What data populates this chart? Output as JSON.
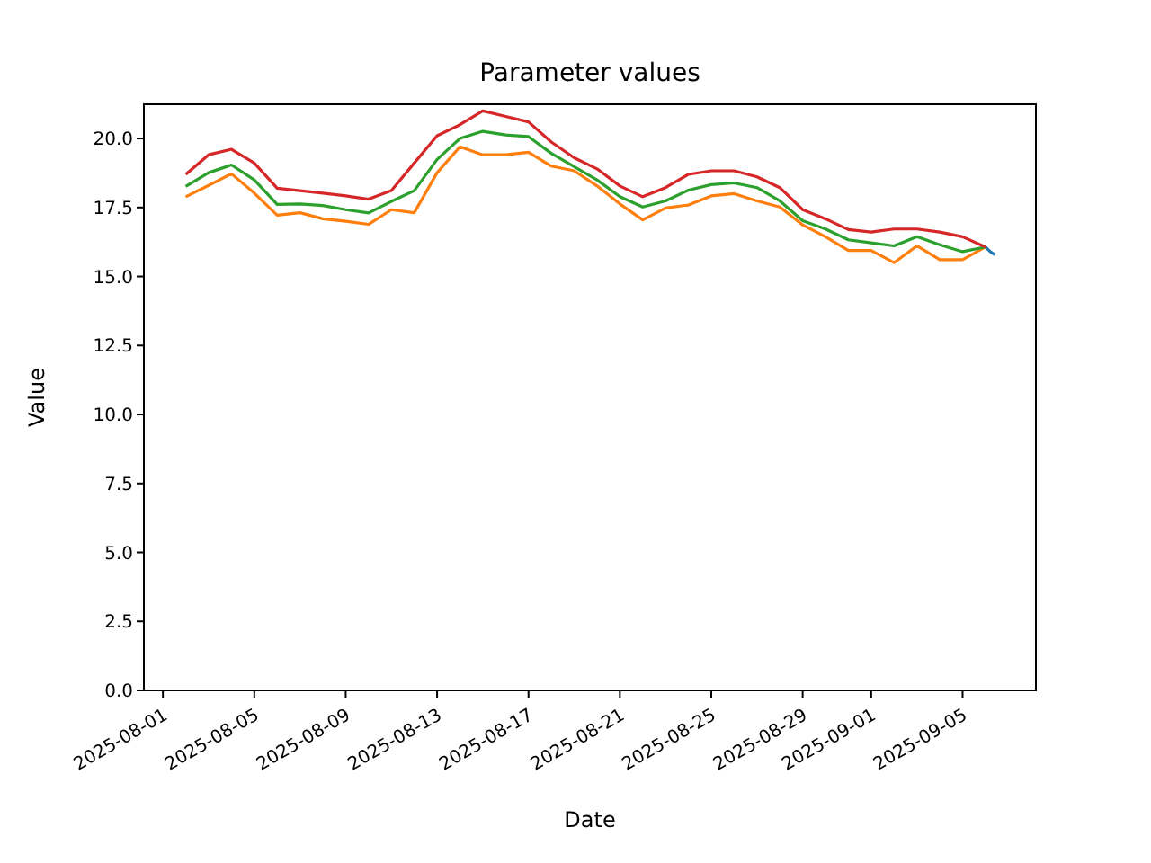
{
  "chart_data": {
    "type": "line",
    "title": "Parameter values",
    "xlabel": "Date",
    "ylabel": "Value",
    "x": [
      "2025-08-02",
      "2025-08-03",
      "2025-08-04",
      "2025-08-05",
      "2025-08-06",
      "2025-08-07",
      "2025-08-08",
      "2025-08-09",
      "2025-08-10",
      "2025-08-11",
      "2025-08-12",
      "2025-08-13",
      "2025-08-14",
      "2025-08-15",
      "2025-08-16",
      "2025-08-17",
      "2025-08-18",
      "2025-08-19",
      "2025-08-20",
      "2025-08-21",
      "2025-08-22",
      "2025-08-23",
      "2025-08-24",
      "2025-08-25",
      "2025-08-26",
      "2025-08-27",
      "2025-08-28",
      "2025-08-29",
      "2025-08-30",
      "2025-08-31",
      "2025-09-01",
      "2025-09-02",
      "2025-09-03",
      "2025-09-04",
      "2025-09-05",
      "2025-09-06"
    ],
    "series": [
      {
        "color": "#1f77b4",
        "x": [
          "2025-09-06T00:00",
          "2025-09-06T05:00",
          "2025-09-06T10:00"
        ],
        "values": [
          16.07,
          15.9,
          15.79
        ]
      },
      {
        "color": "#ff7f0e",
        "values": [
          17.89,
          18.3,
          18.72,
          18.02,
          17.22,
          17.31,
          17.09,
          17.0,
          16.89,
          17.42,
          17.31,
          18.76,
          19.7,
          19.41,
          19.41,
          19.5,
          19.0,
          18.83,
          18.28,
          17.63,
          17.05,
          17.48,
          17.59,
          17.92,
          18.0,
          17.74,
          17.52,
          16.87,
          16.44,
          15.94,
          15.94,
          15.5,
          16.11,
          15.61,
          15.61,
          16.07
        ]
      },
      {
        "color": "#2ca02c",
        "values": [
          18.26,
          18.76,
          19.04,
          18.5,
          17.61,
          17.63,
          17.57,
          17.42,
          17.3,
          17.72,
          18.11,
          19.24,
          20.0,
          20.26,
          20.13,
          20.07,
          19.46,
          18.98,
          18.5,
          17.89,
          17.52,
          17.74,
          18.13,
          18.33,
          18.39,
          18.22,
          17.74,
          17.02,
          16.72,
          16.33,
          16.22,
          16.11,
          16.44,
          16.15,
          15.9,
          16.07
        ]
      },
      {
        "color": "#d62728",
        "values": [
          18.7,
          19.41,
          19.61,
          19.11,
          18.2,
          18.11,
          18.02,
          17.92,
          17.8,
          18.11,
          19.11,
          20.1,
          20.5,
          21.0,
          20.8,
          20.6,
          19.87,
          19.3,
          18.9,
          18.28,
          17.89,
          18.22,
          18.7,
          18.83,
          18.83,
          18.61,
          18.22,
          17.42,
          17.09,
          16.7,
          16.61,
          16.72,
          16.72,
          16.61,
          16.44,
          16.07
        ]
      }
    ],
    "xlim": [
      "2025-07-31T04:00",
      "2025-09-08T05:00"
    ],
    "xticks": [
      "2025-08-01",
      "2025-08-05",
      "2025-08-09",
      "2025-08-13",
      "2025-08-17",
      "2025-08-21",
      "2025-08-25",
      "2025-08-29",
      "2025-09-01",
      "2025-09-05"
    ],
    "ylim": [
      0,
      21.24
    ],
    "yticks": [
      {
        "value": 0,
        "label": "0.0"
      },
      {
        "value": 2.5,
        "label": "2.5"
      },
      {
        "value": 5,
        "label": "5.0"
      },
      {
        "value": 7.5,
        "label": "7.5"
      },
      {
        "value": 10,
        "label": "10.0"
      },
      {
        "value": 12.5,
        "label": "12.5"
      },
      {
        "value": 15,
        "label": "15.0"
      },
      {
        "value": 17.5,
        "label": "17.5"
      },
      {
        "value": 20,
        "label": "20.0"
      }
    ],
    "grid": false,
    "legend": false,
    "marker": "none",
    "line_style": "solid"
  }
}
